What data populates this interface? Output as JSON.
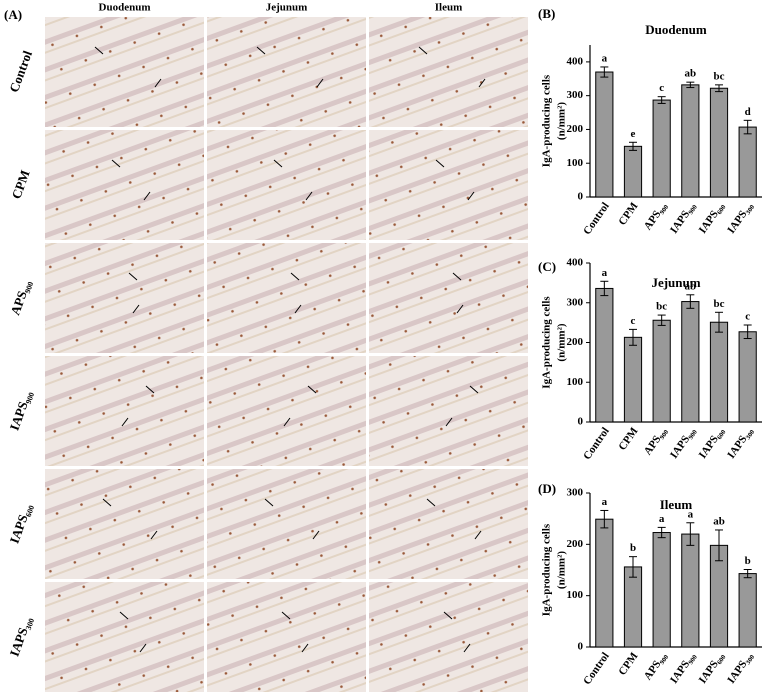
{
  "figure_a": {
    "label": "(A)",
    "columns": [
      "Duodenum",
      "Jejunum",
      "Ileum"
    ],
    "rows": [
      "Control",
      "CPM",
      "APS₉₀₀",
      "IAPS₉₀₀",
      "IAPS₆₀₀",
      "IAPS₃₀₀"
    ]
  },
  "chart_data": [
    {
      "type": "bar",
      "panel": "(B)",
      "title": "Duodenum",
      "y_label": [
        "IgA-producing cells",
        "(n/mm²)"
      ],
      "categories": [
        "Control",
        "CPM",
        "APS₉₀₀",
        "IAPS₉₀₀",
        "IAPS₆₀₀",
        "IAPS₃₀₀"
      ],
      "values": [
        370,
        150,
        287,
        332,
        322,
        207
      ],
      "errors": [
        15,
        12,
        10,
        8,
        10,
        20
      ],
      "annotations": [
        "a",
        "e",
        "c",
        "ab",
        "bc",
        "d"
      ],
      "color": "#999999",
      "ylim": [
        0,
        450
      ],
      "yticks": [
        0,
        100,
        200,
        300,
        400
      ]
    },
    {
      "type": "bar",
      "panel": "(C)",
      "title": "Jejunum",
      "y_label": [
        "IgA-producing cells",
        "(n/mm²)"
      ],
      "categories": [
        "Control",
        "CPM",
        "APS₉₀₀",
        "IAPS₉₀₀",
        "IAPS₆₀₀",
        "IAPS₃₀₀"
      ],
      "values": [
        336,
        213,
        256,
        303,
        251,
        227
      ],
      "errors": [
        18,
        20,
        13,
        17,
        25,
        17
      ],
      "annotations": [
        "a",
        "c",
        "bc",
        "ab",
        "bc",
        "c"
      ],
      "color": "#999999",
      "ylim": [
        0,
        400
      ],
      "yticks": [
        0,
        100,
        200,
        300,
        400
      ]
    },
    {
      "type": "bar",
      "panel": "(D)",
      "title": "Ileum",
      "y_label": [
        "IgA-producing cells",
        "(n/mm²)"
      ],
      "categories": [
        "Control",
        "CPM",
        "APS₉₀₀",
        "IAPS₉₀₀",
        "IAPS₆₀₀",
        "IAPS₃₀₀"
      ],
      "values": [
        249,
        156,
        223,
        220,
        198,
        143
      ],
      "errors": [
        17,
        20,
        10,
        22,
        30,
        8
      ],
      "annotations": [
        "a",
        "b",
        "a",
        "a",
        "ab",
        "b"
      ],
      "color": "#999999",
      "ylim": [
        0,
        300
      ],
      "yticks": [
        0,
        100,
        200,
        300
      ]
    }
  ]
}
